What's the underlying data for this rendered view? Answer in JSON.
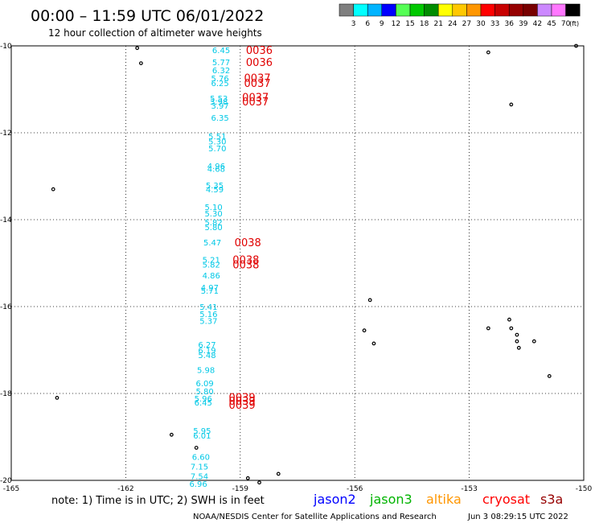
{
  "header": {
    "title": "00:00 – 11:59 UTC 06/01/2022",
    "subtitle": "12 hour collection of altimeter wave heights"
  },
  "legend_scale": {
    "colors": [
      "#7f7f7f",
      "#00ffff",
      "#00b4ff",
      "#0000ff",
      "#55ff55",
      "#00c800",
      "#008c00",
      "#ffff00",
      "#ffc800",
      "#ff9600",
      "#ff0000",
      "#c80000",
      "#960000",
      "#780000",
      "#cc88ff",
      "#ff77ff",
      "#000000"
    ],
    "labels": [
      "3",
      "6",
      "9",
      "12",
      "15",
      "18",
      "21",
      "24",
      "27",
      "30",
      "33",
      "36",
      "39",
      "42",
      "45",
      "70"
    ],
    "unit": "(ft)"
  },
  "axes": {
    "lat_range": [
      -20,
      -10
    ],
    "lon_range": [
      -165,
      -150
    ],
    "lat_ticks": [
      {
        "value": -10,
        "label": "-10"
      },
      {
        "value": -12,
        "label": "-12"
      },
      {
        "value": -14,
        "label": "-14"
      },
      {
        "value": -16,
        "label": "-16"
      },
      {
        "value": -18,
        "label": "-18"
      },
      {
        "value": -20,
        "label": "-20"
      }
    ],
    "lon_ticks": [
      {
        "value": -165,
        "label": "-165"
      },
      {
        "value": -162,
        "label": "-162"
      },
      {
        "value": -159,
        "label": "-159"
      },
      {
        "value": -156,
        "label": "-156"
      },
      {
        "value": -153,
        "label": "-153"
      },
      {
        "value": -150,
        "label": "-150"
      }
    ],
    "grid": "dotted"
  },
  "wave_heights": [
    {
      "lat": -10.09,
      "lon": -159.5,
      "label": "6.45"
    },
    {
      "lat": -10.37,
      "lon": -159.5,
      "label": "5.77"
    },
    {
      "lat": -10.56,
      "lon": -159.5,
      "label": "6.32"
    },
    {
      "lat": -10.74,
      "lon": -159.53,
      "label": "5.76"
    },
    {
      "lat": -10.85,
      "lon": -159.53,
      "label": "6.25"
    },
    {
      "lat": -11.2,
      "lon": -159.56,
      "label": "5.53"
    },
    {
      "lat": -11.28,
      "lon": -159.56,
      "label": "3.98"
    },
    {
      "lat": -11.37,
      "lon": -159.53,
      "label": "3.97"
    },
    {
      "lat": -11.65,
      "lon": -159.53,
      "label": "6.35"
    },
    {
      "lat": -12.07,
      "lon": -159.6,
      "label": "5.51"
    },
    {
      "lat": -12.19,
      "lon": -159.6,
      "label": "5.30"
    },
    {
      "lat": -12.35,
      "lon": -159.6,
      "label": "5.70"
    },
    {
      "lat": -12.76,
      "lon": -159.63,
      "label": "4.96"
    },
    {
      "lat": -12.82,
      "lon": -159.63,
      "label": "4.68"
    },
    {
      "lat": -13.2,
      "lon": -159.67,
      "label": "5.35"
    },
    {
      "lat": -13.3,
      "lon": -159.67,
      "label": "4.59"
    },
    {
      "lat": -13.7,
      "lon": -159.7,
      "label": "5.10"
    },
    {
      "lat": -13.85,
      "lon": -159.7,
      "label": "5.30"
    },
    {
      "lat": -14.06,
      "lon": -159.7,
      "label": "5.82"
    },
    {
      "lat": -14.17,
      "lon": -159.7,
      "label": "5.80"
    },
    {
      "lat": -14.52,
      "lon": -159.73,
      "label": "5.47"
    },
    {
      "lat": -14.92,
      "lon": -159.76,
      "label": "5.21"
    },
    {
      "lat": -15.03,
      "lon": -159.76,
      "label": "5.82"
    },
    {
      "lat": -15.28,
      "lon": -159.76,
      "label": "4.86"
    },
    {
      "lat": -15.56,
      "lon": -159.8,
      "label": "4.97"
    },
    {
      "lat": -15.63,
      "lon": -159.8,
      "label": "5.71"
    },
    {
      "lat": -16.0,
      "lon": -159.83,
      "label": "5.41"
    },
    {
      "lat": -16.17,
      "lon": -159.83,
      "label": "5.16"
    },
    {
      "lat": -16.32,
      "lon": -159.83,
      "label": "5.37"
    },
    {
      "lat": -16.87,
      "lon": -159.87,
      "label": "6.27"
    },
    {
      "lat": -17.0,
      "lon": -159.87,
      "label": "6.19"
    },
    {
      "lat": -17.11,
      "lon": -159.87,
      "label": "5.48"
    },
    {
      "lat": -17.45,
      "lon": -159.9,
      "label": "5.98"
    },
    {
      "lat": -17.76,
      "lon": -159.93,
      "label": "6.09"
    },
    {
      "lat": -17.94,
      "lon": -159.93,
      "label": "5.80"
    },
    {
      "lat": -18.11,
      "lon": -159.97,
      "label": "5.96"
    },
    {
      "lat": -18.2,
      "lon": -159.97,
      "label": "6.45"
    },
    {
      "lat": -18.85,
      "lon": -160.0,
      "label": "5.95"
    },
    {
      "lat": -18.96,
      "lon": -160.0,
      "label": "6.01"
    },
    {
      "lat": -19.45,
      "lon": -160.03,
      "label": "6.60"
    },
    {
      "lat": -19.68,
      "lon": -160.07,
      "label": "7.15"
    },
    {
      "lat": -19.9,
      "lon": -160.07,
      "label": "7.54"
    },
    {
      "lat": -20.07,
      "lon": -160.1,
      "label": "6.96"
    }
  ],
  "time_labels": [
    {
      "lat": -10.09,
      "lon": -158.85,
      "label": "0036"
    },
    {
      "lat": -10.37,
      "lon": -158.85,
      "label": "0036"
    },
    {
      "lat": -10.73,
      "lon": -158.9,
      "label": "0037"
    },
    {
      "lat": -10.85,
      "lon": -158.9,
      "label": "0037"
    },
    {
      "lat": -11.18,
      "lon": -158.95,
      "label": "0037"
    },
    {
      "lat": -11.28,
      "lon": -158.95,
      "label": "0037"
    },
    {
      "lat": -14.52,
      "lon": -159.15,
      "label": "0038"
    },
    {
      "lat": -14.92,
      "lon": -159.2,
      "label": "0038"
    },
    {
      "lat": -15.03,
      "lon": -159.2,
      "label": "0038"
    },
    {
      "lat": -18.08,
      "lon": -159.3,
      "label": "0039"
    },
    {
      "lat": -18.17,
      "lon": -159.3,
      "label": "0039"
    },
    {
      "lat": -18.26,
      "lon": -159.3,
      "label": "0039"
    }
  ],
  "islands": [
    {
      "lat": -10.05,
      "lon": -161.7
    },
    {
      "lat": -10.4,
      "lon": -161.6
    },
    {
      "lat": -13.3,
      "lon": -163.9
    },
    {
      "lat": -18.1,
      "lon": -163.8
    },
    {
      "lat": -18.95,
      "lon": -160.8
    },
    {
      "lat": -19.25,
      "lon": -160.15
    },
    {
      "lat": -19.85,
      "lon": -158.0
    },
    {
      "lat": -20.05,
      "lon": -158.5
    },
    {
      "lat": -19.95,
      "lon": -158.8
    },
    {
      "lat": -15.85,
      "lon": -155.6
    },
    {
      "lat": -16.55,
      "lon": -155.75
    },
    {
      "lat": -16.85,
      "lon": -155.5
    },
    {
      "lat": -10.15,
      "lon": -152.5
    },
    {
      "lat": -11.35,
      "lon": -151.9
    },
    {
      "lat": -10.0,
      "lon": -150.2
    },
    {
      "lat": -16.3,
      "lon": -151.95
    },
    {
      "lat": -16.5,
      "lon": -152.5
    },
    {
      "lat": -16.5,
      "lon": -151.9
    },
    {
      "lat": -16.65,
      "lon": -151.75
    },
    {
      "lat": -16.8,
      "lon": -151.75
    },
    {
      "lat": -16.95,
      "lon": -151.7
    },
    {
      "lat": -16.8,
      "lon": -151.3
    },
    {
      "lat": -17.6,
      "lon": -150.9
    }
  ],
  "footer": {
    "note": "note: 1) Time is in UTC; 2) SWH is in feet",
    "satellites": [
      {
        "name": "jason2",
        "color": "#0000ff"
      },
      {
        "name": "jason3",
        "color": "#00b400"
      },
      {
        "name": "altika",
        "color": "#ff9600"
      },
      {
        "name": "cryosat",
        "color": "#ff0000"
      },
      {
        "name": "s3a",
        "color": "#960000"
      }
    ],
    "credit": "NOAA/NESDIS Center for Satellite Applications and Research",
    "timestamp": "Jun  3 08:29:15 UTC 2022"
  },
  "colors": {
    "wave_label": "#00c8e6",
    "time_label": "#e00000",
    "grid": "#000000",
    "island": "#000000"
  }
}
